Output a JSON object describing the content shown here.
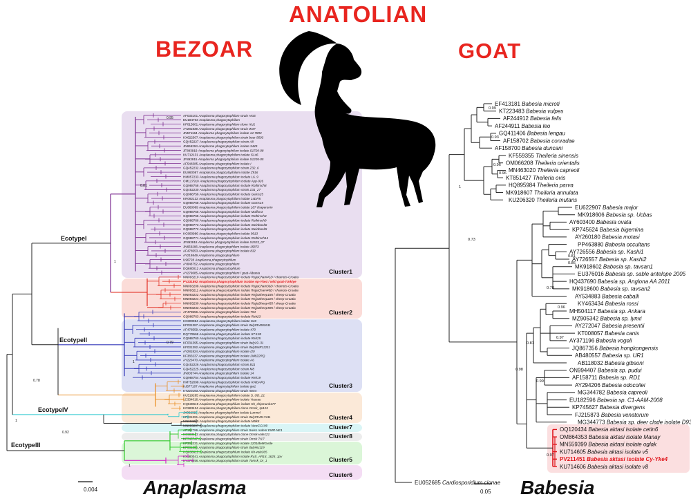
{
  "titles": {
    "center": "ANATOLIAN",
    "left": "BEZOAR",
    "right": "GOAT"
  },
  "panels": {
    "left": "Anaplasma",
    "right": "Babesia"
  },
  "scalebars": {
    "left": "0.004",
    "right": "0.05"
  },
  "colors": {
    "title": "#e8251f",
    "cluster1": "#e9def0",
    "cluster2": "#fbdcd8",
    "cluster3": "#dde0f4",
    "cluster4": "#fbe9d8",
    "cluster5": "#dbf6d8",
    "cluster6": "#f4ddf4",
    "cluster7": "#d9f5f6",
    "cluster8": "#ececec",
    "highlight_babesia": "#fbdfe0"
  },
  "anaplasma": {
    "ecotypes": [
      "EcotypeI",
      "EcotypeII",
      "EcotypeIV",
      "EcotypeIII"
    ],
    "clusters": [
      "Cluster1",
      "Cluster2",
      "Cluster3",
      "Cluster4",
      "Cluster7",
      "Cluster8",
      "Cluster5",
      "Cluster6"
    ],
    "support": [
      "0.78",
      "1",
      "0.92",
      "1",
      "1",
      "0.81",
      "0.95",
      "0.79",
      "1"
    ],
    "taxa": [
      {
        "acc": "AF033101",
        "name": "Anaplasma phagocytophilum strain HGE"
      },
      {
        "acc": "EU184703",
        "name": "Anaplasma phagocytophilum"
      },
      {
        "acc": "KF015601",
        "name": "Anaplasma phagocytophilum clone HU1"
      },
      {
        "acc": "AY281839",
        "name": "Anaplasma phagocytophilum strain W37"
      },
      {
        "acc": "JN571164",
        "name": "Anaplasma phagocytophilum isolate 14-7893"
      },
      {
        "acc": "KX622307",
        "name": "Anaplasma phagocytophilum strain bear 9503"
      },
      {
        "acc": "GQ452227",
        "name": "Anaplasma phagocytophilum strain A8"
      },
      {
        "acc": "JN656294",
        "name": "Anaplasma phagocytophilum isolate 3449"
      },
      {
        "acc": "JF893919",
        "name": "Anaplasma phagocytophilum isolate S1729-08"
      },
      {
        "acc": "KU712131",
        "name": "Anaplasma phagocytophilum isolate S146"
      },
      {
        "acc": "JF893915",
        "name": "Anaplasma phagocytophilum isolate S1205-05"
      },
      {
        "acc": "AF548385",
        "name": "Anaplasma phagocytophilum isolate I"
      },
      {
        "acc": "GQ452232",
        "name": "Anaplasma phagocytophilum strain Z32_6"
      },
      {
        "acc": "EU860087",
        "name": "Anaplasma phagocytophilum isolate Z916"
      },
      {
        "acc": "HM057233",
        "name": "Anaplasma phagocytophilum isolate L6_9"
      },
      {
        "acc": "OM127910",
        "name": "Anaplasma phagocytophilum isolate App-926"
      },
      {
        "acc": "GQ988758",
        "name": "Anaplasma phagocytophilum isolate Rothirsch8"
      },
      {
        "acc": "GQ452230",
        "name": "Anaplasma phagocytophilum strain Z31_27"
      },
      {
        "acc": "GQ988756",
        "name": "Anaplasma phagocytophilum isolate Gams25"
      },
      {
        "acc": "KR092132",
        "name": "Anaplasma phagocytophilum isolate 14DR5"
      },
      {
        "acc": "GQ988768",
        "name": "Anaplasma phagocytophilum isolate Gams15"
      },
      {
        "acc": "EU860089",
        "name": "Anaplasma phagocytophilum isolate 187 chaperonin"
      },
      {
        "acc": "GQ988755",
        "name": "Anaplasma phagocytophilum isolate Muffon3"
      },
      {
        "acc": "GQ988765",
        "name": "Anaplasma phagocytophilum isolate Rothirsch3"
      },
      {
        "acc": "GQ988766",
        "name": "Anaplasma phagocytophilum isolate Rothirsch9"
      },
      {
        "acc": "GQ988773",
        "name": "Anaplasma phagocytophilum isolate Steinbock6"
      },
      {
        "acc": "GQ988772",
        "name": "Anaplasma phagocytophilum isolate Steinbock5"
      },
      {
        "acc": "KC800986",
        "name": "Anaplasma phagocytophilum isolate 9913"
      },
      {
        "acc": "GQ988771",
        "name": "Anaplasma phagocytophilum isolate Rothirsch14"
      },
      {
        "acc": "JF893918",
        "name": "Anaplasma phagocytophilum isolate S1523_07"
      },
      {
        "acc": "JN656296",
        "name": "Anaplasma phagocytophilum isolate 15872"
      },
      {
        "acc": "AF478553",
        "name": "Anaplasma phagocytophilum isolate 832"
      },
      {
        "acc": "AY219849",
        "name": "Anaplasma phagocytophilum"
      },
      {
        "acc": "U96728",
        "name": "Anaplasma phagocytophilum"
      },
      {
        "acc": "AY848752",
        "name": "Anaplasma phagocytophilum"
      },
      {
        "acc": "DQ680012",
        "name": "Anaplasma phagocytophilum"
      },
      {
        "acc": "AY279085",
        "name": "Anaplasma phagocytophilum / goat-Albania"
      },
      {
        "acc": "MN093210",
        "name": "Anaplasma phagocytophilum isolate RejjaCham41D / chamois-Croatia"
      },
      {
        "acc": "PV231892",
        "name": "Anaplasma phagocytophilum isolate Ap-Yke4 / wild goat-Türkiye"
      },
      {
        "acc": "MN093208",
        "name": "Anaplasma phagocytophilum isolate RejjaCham36D / chamois-Croatia"
      },
      {
        "acc": "MN093211",
        "name": "Anaplasma phagocytophilum isolate RejjaCham46D / chamois-Croatia"
      },
      {
        "acc": "MN093222",
        "name": "Anaplasma phagocytophilum isolate RejjaSheep185 / sheep-Croatia"
      },
      {
        "acc": "MN093224",
        "name": "Anaplasma phagocytophilum isolate RejjaSheep225 / sheep-Croatia"
      },
      {
        "acc": "MN093230",
        "name": "Anaplasma phagocytophilum isolate RejjaSheep435 / sheep-Croatia"
      },
      {
        "acc": "MN093233",
        "name": "Anaplasma phagocytophilum isolate RejjaSheep595 / sheep-Croatia"
      },
      {
        "acc": "AF478556",
        "name": "Anaplasma phagocytophilum isolate 794"
      },
      {
        "acc": "GQ988763",
        "name": "Anaplasma phagocytophilum isolate Reh23"
      },
      {
        "acc": "KC800984",
        "name": "Anaplasma phagocytophilum isolate S40"
      },
      {
        "acc": "KF031387",
        "name": "Anaplasma phagocytophilum strain ItalyIRH002611"
      },
      {
        "acc": "AF478559",
        "name": "Anaplasma phagocytophilum isolate 470"
      },
      {
        "acc": "DQ779568",
        "name": "Anaplasma phagocytophilum isolate ST-128"
      },
      {
        "acc": "GQ988760",
        "name": "Anaplasma phagocytophilum isolate Reh25"
      },
      {
        "acc": "KF031395",
        "name": "Anaplasma phagocytophilum strain Italy19_31"
      },
      {
        "acc": "KF031392",
        "name": "Anaplasma phagocytophilum strain ItalyDNR12211"
      },
      {
        "acc": "AY281824",
        "name": "Anaplasma phagocytophilum isolate I20"
      },
      {
        "acc": "KF383237",
        "name": "Anaplasma phagocytophilum isolate 2M8Z2RQ"
      },
      {
        "acc": "AY220470",
        "name": "Anaplasma phagocytophilum isolate A6"
      },
      {
        "acc": "GQ452226",
        "name": "Anaplasma phagocytophilum strain B11"
      },
      {
        "acc": "GQ452225",
        "name": "Anaplasma phagocytophilum strain M8"
      },
      {
        "acc": "JN005744",
        "name": "Anaplasma phagocytophilum isolate 14"
      },
      {
        "acc": "GQ988754",
        "name": "Anaplasma phagocytophilum isolate Reh19"
      },
      {
        "acc": "HM752098",
        "name": "Anaplasma phagocytophilum isolate KWDAPg"
      },
      {
        "acc": "KJ677107",
        "name": "Anaplasma phagocytophilum isolate gw1"
      },
      {
        "acc": "KT220193",
        "name": "Anaplasma phagocytophilum strain A8X4"
      },
      {
        "acc": "KU519285",
        "name": "Anaplasma phagocytophilum isolate S_OD_21"
      },
      {
        "acc": "LC334016",
        "name": "Anaplasma phagocytophilum isolate Yeusau"
      },
      {
        "acc": "HQ630619",
        "name": "Anaplasma phagocytophilum isolate Kh_chipmunk177"
      },
      {
        "acc": "KC583434",
        "name": "Anaplasma phagocytophilum clone Omsk_1p124"
      },
      {
        "acc": "JX082323",
        "name": "Anaplasma phagocytophilum isolate Lumnel"
      },
      {
        "acc": "KF031391",
        "name": "Anaplasma phagocytophilum strain ItalyIRH017411"
      },
      {
        "acc": "MN093205",
        "name": "Anaplasma phagocytophilum isolate MSk5"
      },
      {
        "acc": "MN093207",
        "name": "Anaplasma phagocytophilum isolate NewCC199"
      },
      {
        "acc": "AF192796",
        "name": "Anaplasma phagocytophilum strain Swiss rodent EMR-NE1"
      },
      {
        "acc": "KC583432",
        "name": "Anaplasma phagocytophilum clone Omsk-vole121"
      },
      {
        "acc": "KF745747",
        "name": "Anaplasma phagocytophilum strain Omsk Tr17"
      },
      {
        "acc": "KF383231",
        "name": "Anaplasma phagocytophilum isolate 1201ldeMGvole"
      },
      {
        "acc": "KF031385",
        "name": "Anaplasma phagocytophilum strain ItalyHU119"
      },
      {
        "acc": "HQ630615",
        "name": "Anaplasma phagocytophilum isolate Kh-vole305"
      },
      {
        "acc": "KX980041",
        "name": "Anaplasma phagocytophilum isolate RuS_AR14_1625_1pv"
      },
      {
        "acc": "KY379956",
        "name": "Anaplasma phagocytophilum strain Tomsk_Dr_1"
      }
    ]
  },
  "babesia": {
    "support": [
      "0.99",
      "0.93",
      "0.96",
      "0.96",
      "0.81",
      "0.86",
      "0.78",
      "0.96",
      "0.97",
      "0.81",
      "0.98",
      "0.99",
      "0.97",
      "0.73"
    ],
    "taxa": [
      {
        "acc": "EF413181",
        "name": "Babesia microti"
      },
      {
        "acc": "KT223483",
        "name": "Babesia vulpes"
      },
      {
        "acc": "AF244912",
        "name": "Babesia felis"
      },
      {
        "acc": "AF244911",
        "name": "Babesia leo"
      },
      {
        "acc": "GQ411406",
        "name": "Babesia lengau"
      },
      {
        "acc": "AF158702",
        "name": "Babesia conradae"
      },
      {
        "acc": "AF158700",
        "name": "Babesia duncani"
      },
      {
        "acc": "KF559355",
        "name": "Theileria sinensis"
      },
      {
        "acc": "OM066208",
        "name": "Theileria orientalis"
      },
      {
        "acc": "MN463020",
        "name": "Theileria capreoli"
      },
      {
        "acc": "KT851427",
        "name": "Theileria ovis"
      },
      {
        "acc": "HQ895984",
        "name": "Theileria parva"
      },
      {
        "acc": "MK918607",
        "name": "Theileria annulata"
      },
      {
        "acc": "KU206320",
        "name": "Theileria mutans"
      },
      {
        "acc": "EU622907",
        "name": "Babesia major"
      },
      {
        "acc": "MK918606",
        "name": "Babesia sp. Ucbas"
      },
      {
        "acc": "AY603400",
        "name": "Babesia ovata"
      },
      {
        "acc": "KP745624",
        "name": "Babesia bigemina"
      },
      {
        "acc": "AY260180",
        "name": "Babesia motasi"
      },
      {
        "acc": "PP463880",
        "name": "Babesia occultans"
      },
      {
        "acc": "AY726556",
        "name": "Babesia sp. Kashi1"
      },
      {
        "acc": "AY726557",
        "name": "Babesia sp. Kashi2"
      },
      {
        "acc": "MK918602",
        "name": "Babesia sp. tavsan1"
      },
      {
        "acc": "EU376016",
        "name": "Babesia sp. sable antelope 2005"
      },
      {
        "acc": "HQ437690",
        "name": "Babesia sp. Anglona AA 2011"
      },
      {
        "acc": "MK918600",
        "name": "Babesia sp. tavsan2"
      },
      {
        "acc": "AY534883",
        "name": "Babesia caballi"
      },
      {
        "acc": "KY463434",
        "name": "Babesia rossi"
      },
      {
        "acc": "MH504117",
        "name": "Babesia sp. Ankara"
      },
      {
        "acc": "MZ905342",
        "name": "Babesia sp. lynxi"
      },
      {
        "acc": "AY272047",
        "name": "Babesia presentii"
      },
      {
        "acc": "KT008057",
        "name": "Babesia canis"
      },
      {
        "acc": "AY371196",
        "name": "Babesia vogeli"
      },
      {
        "acc": "JQ867356",
        "name": "Babesia hongkongensis"
      },
      {
        "acc": "AB480557",
        "name": "Babesia sp. UR1"
      },
      {
        "acc": "AB118032",
        "name": "Babesia gibsoni"
      },
      {
        "acc": "ON994407",
        "name": "Babesia sp. pudui"
      },
      {
        "acc": "AF158711",
        "name": "Babesia sp. RD1"
      },
      {
        "acc": "AY294206",
        "name": "Babesia odocoilei"
      },
      {
        "acc": "MG344782",
        "name": "Babesia capreoli"
      },
      {
        "acc": "EU182596",
        "name": "Babesia sp. C1-AAM-2008"
      },
      {
        "acc": "KP745627",
        "name": "Babesia divergens"
      },
      {
        "acc": "FJ215873",
        "name": "Babesia venatorum"
      },
      {
        "acc": "MG344773",
        "name": "Babesia sp. deer clade isolate D93"
      },
      {
        "acc": "OQ120434",
        "name": "Babesia aktasi isolate cetin6"
      },
      {
        "acc": "OM864353",
        "name": "Babesia aktasi isolate Manay"
      },
      {
        "acc": "MN559399",
        "name": "Babesia aktasi isolate oglak"
      },
      {
        "acc": "KU714605",
        "name": "Babesia aktasi isolate v5"
      },
      {
        "acc": "PV211451",
        "name": "Babesia aktasi isolate Cy-Yke4"
      },
      {
        "acc": "KU714606",
        "name": "Babesia aktasi isolate v8"
      },
      {
        "acc": "EU052685",
        "name": "Cardiosporidium cionae"
      }
    ]
  }
}
